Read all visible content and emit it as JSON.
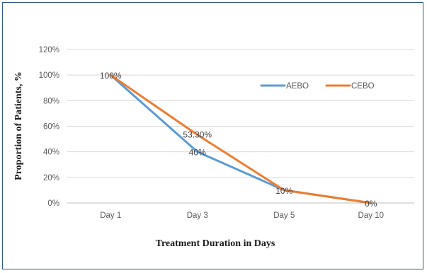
{
  "chart_data": {
    "type": "line",
    "categories": [
      "Day 1",
      "Day 3",
      "Day 5",
      "Day 10"
    ],
    "series": [
      {
        "name": "AEBO",
        "values": [
          100,
          40,
          10,
          0
        ],
        "color": "#5b9bd5"
      },
      {
        "name": "CEBO",
        "values": [
          100,
          53.3,
          10,
          0
        ],
        "color": "#ed7d31"
      }
    ],
    "data_labels": [
      "100%",
      "40%",
      "53.30%",
      "10%",
      "0%"
    ],
    "xlabel": "Treatment Duration in Days",
    "ylabel": "Proportion of Patients, %",
    "ylim": [
      0,
      120
    ],
    "yticks": [
      0,
      20,
      40,
      60,
      80,
      100,
      120
    ],
    "ytick_labels": [
      "0%",
      "20%",
      "40%",
      "60%",
      "80%",
      "100%",
      "120%"
    ],
    "grid": true,
    "legend_position": "top-right"
  }
}
